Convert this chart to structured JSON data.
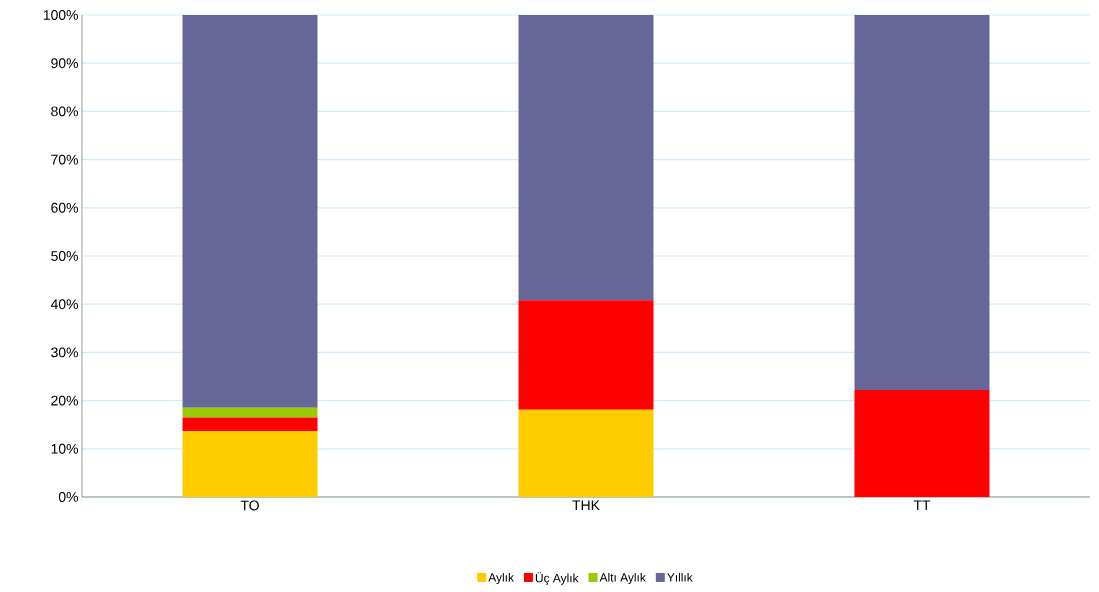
{
  "chart_data": {
    "type": "bar",
    "stacked": true,
    "categories": [
      "TO",
      "THK",
      "TT"
    ],
    "series": [
      {
        "name": "Aylık",
        "color": "#ffcc00",
        "values": [
          13.7,
          18.1,
          0
        ]
      },
      {
        "name": "Üç Aylık",
        "color": "#ff0000",
        "values": [
          2.8,
          22.7,
          22.2
        ]
      },
      {
        "name": "Altı Aylık",
        "color": "#99cc00",
        "values": [
          2.0,
          0,
          0
        ]
      },
      {
        "name": "Yıllık",
        "color": "#666699",
        "values": [
          81.5,
          59.2,
          77.8
        ]
      }
    ],
    "ylim": [
      0,
      100
    ],
    "yticks": [
      {
        "value": 0,
        "label": "0%"
      },
      {
        "value": 10,
        "label": "10%"
      },
      {
        "value": 20,
        "label": "20%"
      },
      {
        "value": 30,
        "label": "30%"
      },
      {
        "value": 40,
        "label": "40%"
      },
      {
        "value": 50,
        "label": "50%"
      },
      {
        "value": 60,
        "label": "60%"
      },
      {
        "value": 70,
        "label": "70%"
      },
      {
        "value": 80,
        "label": "80%"
      },
      {
        "value": 90,
        "label": "90%"
      },
      {
        "value": 100,
        "label": "100%"
      }
    ],
    "grid": "y",
    "legend": "bottom"
  }
}
